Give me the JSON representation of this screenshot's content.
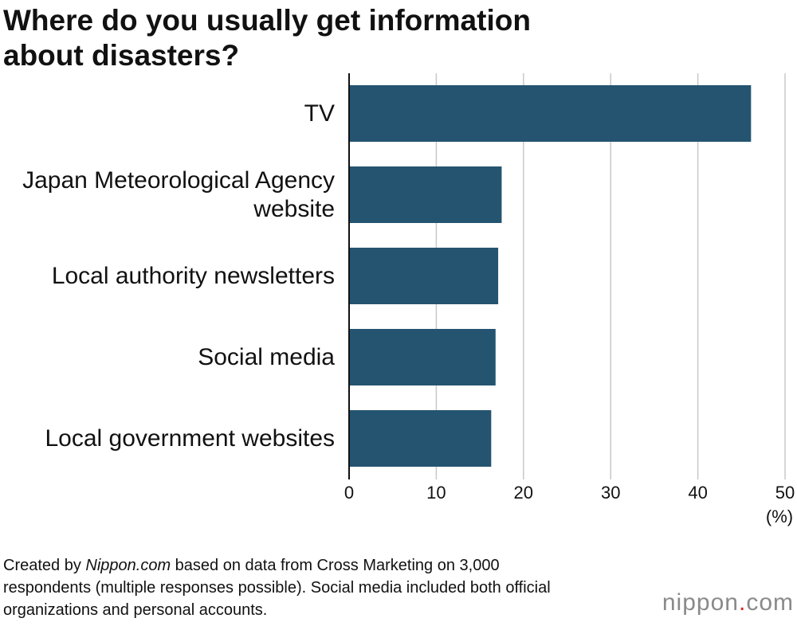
{
  "chart_data": {
    "type": "bar",
    "orientation": "horizontal",
    "title": "Where do you usually get information about disasters?",
    "categories": [
      "TV",
      "Japan Meteorological Agency website",
      "Local authority newsletters",
      "Social media",
      "Local government websites"
    ],
    "values": [
      46.1,
      17.5,
      17.1,
      16.8,
      16.3
    ],
    "color": "#245470",
    "xlim": [
      0,
      50
    ],
    "xticks": [
      0,
      10,
      20,
      30,
      40,
      50
    ],
    "grid": true,
    "x_unit": "(%)",
    "note": {
      "before": "Created by ",
      "source": "Nippon.com",
      "after": " based on data from Cross Marketing on 3,000 respondents (multiple responses possible). Social media included both official organizations and personal accounts."
    },
    "logo": [
      "nippon",
      ".",
      "com"
    ]
  }
}
